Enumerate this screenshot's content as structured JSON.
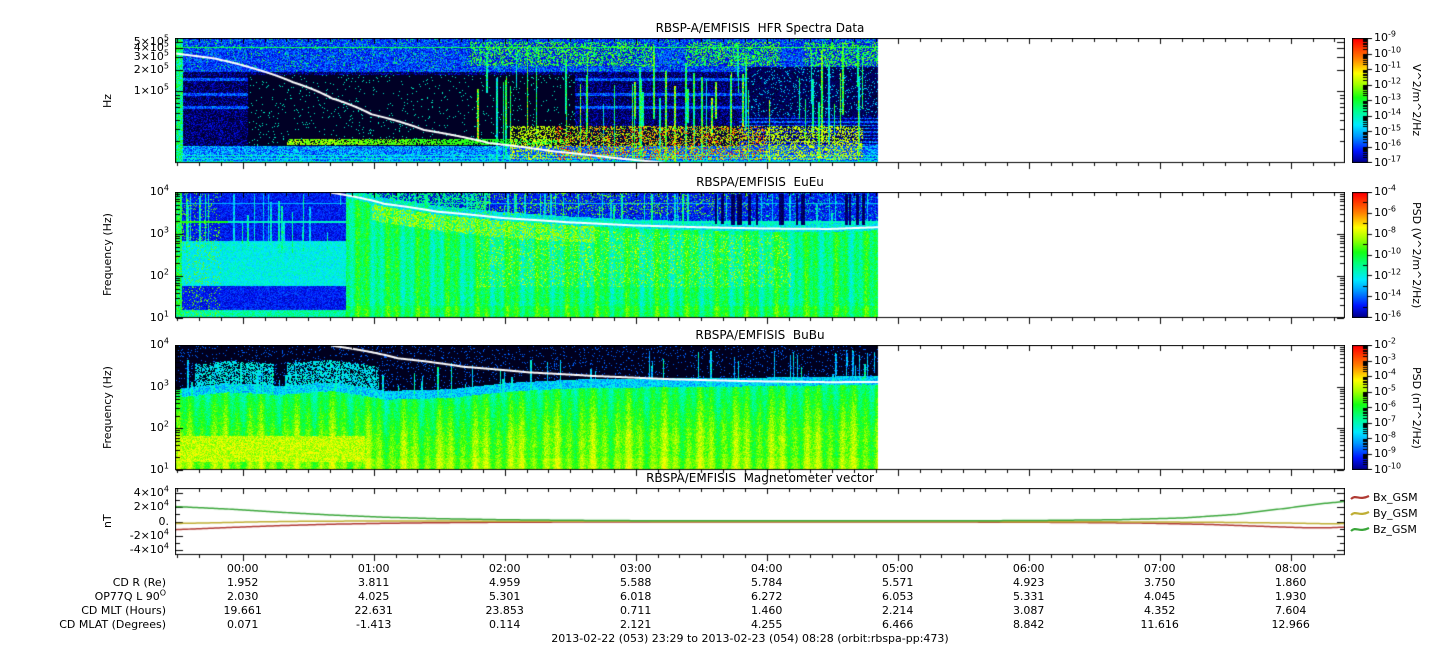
{
  "figure": {
    "caption": "2013-02-22 (053) 23:29 to 2013-02-23 (054) 08:28 (orbit:rbspa-pp:473)",
    "background": "#ffffff",
    "foreground": "#000000"
  },
  "time_axis": {
    "start_label": "23:29",
    "end_label": "08:28",
    "hour_labels": [
      "00:00",
      "01:00",
      "02:00",
      "03:00",
      "04:00",
      "05:00",
      "06:00",
      "07:00",
      "08:00"
    ],
    "first_hour_offset_hours": 0.5167,
    "visible_span_hours": 8.93,
    "spectra_data_end_hours": 5.37,
    "minor_tick_minutes": 10
  },
  "ephemeris": {
    "rows": [
      {
        "label": "CD R (Re)",
        "sup": "",
        "values": [
          "1.952",
          "3.811",
          "4.959",
          "5.588",
          "5.784",
          "5.571",
          "4.923",
          "3.750",
          "1.860"
        ]
      },
      {
        "label": "OP77Q L 90",
        "sup": "O",
        "values": [
          "2.030",
          "4.025",
          "5.301",
          "6.018",
          "6.272",
          "6.053",
          "5.331",
          "4.045",
          "1.930"
        ]
      },
      {
        "label": "CD MLT (Hours)",
        "sup": "",
        "values": [
          "19.661",
          "22.631",
          "23.853",
          "0.711",
          "1.460",
          "2.214",
          "3.087",
          "4.352",
          "7.604"
        ]
      },
      {
        "label": "CD MLAT (Degrees)",
        "sup": "",
        "values": [
          "0.071",
          "-1.413",
          "0.114",
          "2.121",
          "4.255",
          "6.466",
          "8.842",
          "11.616",
          "12.966"
        ]
      }
    ]
  },
  "chart_data": [
    {
      "id": "hfr",
      "type": "heatmap",
      "title": "RBSP-A/EMFISIS  HFR Spectra Data",
      "ylabel": "Hz",
      "yscale": "log",
      "ymin": 10000,
      "ymax": 560000,
      "yticks": [
        {
          "b": "5×10",
          "e": "5",
          "v": 500000
        },
        {
          "b": "4×10",
          "e": "5",
          "v": 400000
        },
        {
          "b": "3×10",
          "e": "5",
          "v": 300000
        },
        {
          "b": "2×10",
          "e": "5",
          "v": 200000
        },
        {
          "b": "1×10",
          "e": "5",
          "v": 100000
        }
      ],
      "colorbar": {
        "unit": "V^2/m^2/Hz",
        "top_exp": -9,
        "bottom_exp": -17,
        "ticks": [
          -9,
          -10,
          -11,
          -12,
          -13,
          -14,
          -15,
          -16,
          -17
        ],
        "minor": "log"
      },
      "hline_hz": 420000,
      "overlay_line": {
        "name": "fce",
        "color": "#ffffff",
        "points_t_hz": [
          [
            0,
            340000
          ],
          [
            0.3,
            290000
          ],
          [
            0.6,
            210000
          ],
          [
            0.9,
            135000
          ],
          [
            1.2,
            80000
          ],
          [
            1.5,
            48000
          ],
          [
            1.9,
            29000
          ],
          [
            2.4,
            19000
          ],
          [
            2.9,
            14500
          ],
          [
            3.4,
            11500
          ],
          [
            3.75,
            10000
          ]
        ]
      },
      "features": [
        "blue broadband speckle",
        "black low-signal region 00:05-02:30 in mid band",
        "green emission patches near 400 kHz from ~01:45 to ~04:50",
        "constant green line near 420 kHz",
        "vertical broadband bursts 01:45-04:45",
        "intense orange-red band near 20-40 kHz 02:00-04:40",
        "data gap after ~04:51"
      ]
    },
    {
      "id": "euu",
      "type": "heatmap",
      "title": "RBSPA/EMFISIS  EuEu",
      "ylabel": "Frequency (Hz)",
      "yscale": "log",
      "ymin": 10,
      "ymax": 10000,
      "yticks": [
        {
          "b": "10",
          "e": "4",
          "v": 10000
        },
        {
          "b": "10",
          "e": "3",
          "v": 1000
        },
        {
          "b": "10",
          "e": "2",
          "v": 100
        },
        {
          "b": "10",
          "e": "1",
          "v": 10
        }
      ],
      "colorbar": {
        "unit": "PSD (V^2/m^2/Hz)",
        "top_exp": -4,
        "bottom_exp": -16,
        "ticks": [
          -4,
          -6,
          -8,
          -10,
          -12,
          -14,
          -16
        ],
        "minor": "decade"
      },
      "hline_hz": 2000,
      "overlay_line": {
        "name": "fce/2",
        "color": "#ffffff",
        "points_t_hz": [
          [
            1.18,
            9800
          ],
          [
            1.6,
            5200
          ],
          [
            2.0,
            3400
          ],
          [
            2.5,
            2400
          ],
          [
            3.0,
            1900
          ],
          [
            3.5,
            1600
          ],
          [
            4.0,
            1450
          ],
          [
            4.5,
            1350
          ],
          [
            5.0,
            1320
          ],
          [
            5.37,
            1450
          ]
        ]
      },
      "features": [
        "cyan plasmaspheric hiss blob 60-700 Hz before 00:45",
        "broad green wave band below white line 01:15-04:50 with yellow patches",
        "narrow cyan line at 2 kHz across full interval",
        "vertical cyan bursts",
        "data gap after ~04:51"
      ]
    },
    {
      "id": "bubu",
      "type": "heatmap",
      "title": "RBSPA/EMFISIS  BuBu",
      "ylabel": "Frequency (Hz)",
      "yscale": "log",
      "ymin": 10,
      "ymax": 10000,
      "yticks": [
        {
          "b": "10",
          "e": "4",
          "v": 10000
        },
        {
          "b": "10",
          "e": "3",
          "v": 1000
        },
        {
          "b": "10",
          "e": "2",
          "v": 100
        },
        {
          "b": "10",
          "e": "1",
          "v": 10
        }
      ],
      "colorbar": {
        "unit": "PSD (nT^2/Hz)",
        "top_exp": -2,
        "bottom_exp": -10,
        "ticks": [
          -2,
          -3,
          -4,
          -5,
          -6,
          -7,
          -8,
          -9,
          -10
        ],
        "minor": "log"
      },
      "overlay_line": {
        "name": "fce/2",
        "color": "#ffffff",
        "points_t_hz": [
          [
            1.18,
            9800
          ],
          [
            1.7,
            4800
          ],
          [
            2.2,
            3000
          ],
          [
            2.7,
            2200
          ],
          [
            3.2,
            1800
          ],
          [
            3.8,
            1500
          ],
          [
            4.4,
            1350
          ],
          [
            5.0,
            1280
          ],
          [
            5.37,
            1300
          ]
        ]
      },
      "features": [
        "black above ~1 kHz",
        "bright green magnetic wave power below ~1 kHz",
        "yellow-orange band 15-70 Hz before 00:55",
        "cyan vertical streaks",
        "data gap after ~04:51"
      ]
    },
    {
      "id": "mag",
      "type": "line",
      "title": "RBSPA/EMFISIS  Magnetometer vector",
      "ylabel": "nT",
      "yscale": "linear",
      "ymin": -47000,
      "ymax": 47000,
      "yticks": [
        {
          "b": "4×10",
          "e": "4",
          "v": 40000
        },
        {
          "b": "2×10",
          "e": "4",
          "v": 20000
        },
        {
          "b": "0.",
          "e": "",
          "v": 0
        },
        {
          "b": "-2×10",
          "e": "4",
          "v": -20000
        },
        {
          "b": "-4×10",
          "e": "4",
          "v": -40000
        }
      ],
      "series": [
        {
          "name": "Bx_GSM",
          "color": "#b03a33",
          "points": [
            [
              0,
              -11500
            ],
            [
              0.4,
              -8500
            ],
            [
              0.8,
              -5800
            ],
            [
              1.2,
              -3800
            ],
            [
              1.6,
              -2500
            ],
            [
              2.0,
              -1700
            ],
            [
              2.5,
              -1100
            ],
            [
              3.0,
              -800
            ],
            [
              4.0,
              -600
            ],
            [
              5.0,
              -600
            ],
            [
              6.0,
              -800
            ],
            [
              6.8,
              -1300
            ],
            [
              7.4,
              -2300
            ],
            [
              7.9,
              -4200
            ],
            [
              8.3,
              -6800
            ],
            [
              8.6,
              -8600
            ],
            [
              8.8,
              -8800
            ],
            [
              8.98,
              -7500
            ]
          ]
        },
        {
          "name": "By_GSM",
          "color": "#bfae35",
          "points": [
            [
              0,
              -2800
            ],
            [
              0.3,
              -1800
            ],
            [
              0.6,
              -600
            ],
            [
              1.0,
              300
            ],
            [
              1.5,
              700
            ],
            [
              2.0,
              600
            ],
            [
              3.0,
              300
            ],
            [
              4.0,
              100
            ],
            [
              5.0,
              0
            ],
            [
              6.0,
              -100
            ],
            [
              6.8,
              -300
            ],
            [
              7.5,
              -700
            ],
            [
              8.0,
              -1200
            ],
            [
              8.5,
              -2200
            ],
            [
              8.8,
              -3200
            ],
            [
              8.98,
              -2800
            ]
          ]
        },
        {
          "name": "Bz_GSM",
          "color": "#3aa63a",
          "points": [
            [
              0,
              21000
            ],
            [
              0.4,
              17500
            ],
            [
              0.8,
              13000
            ],
            [
              1.2,
              9000
            ],
            [
              1.6,
              6000
            ],
            [
              2.0,
              4000
            ],
            [
              2.5,
              2500
            ],
            [
              3.0,
              1700
            ],
            [
              3.5,
              1200
            ],
            [
              4.5,
              900
            ],
            [
              5.5,
              900
            ],
            [
              6.5,
              1300
            ],
            [
              7.2,
              2500
            ],
            [
              7.7,
              5000
            ],
            [
              8.1,
              10000
            ],
            [
              8.5,
              19000
            ],
            [
              8.75,
              25000
            ],
            [
              8.98,
              29000
            ]
          ]
        }
      ],
      "legend_position": "right"
    }
  ]
}
